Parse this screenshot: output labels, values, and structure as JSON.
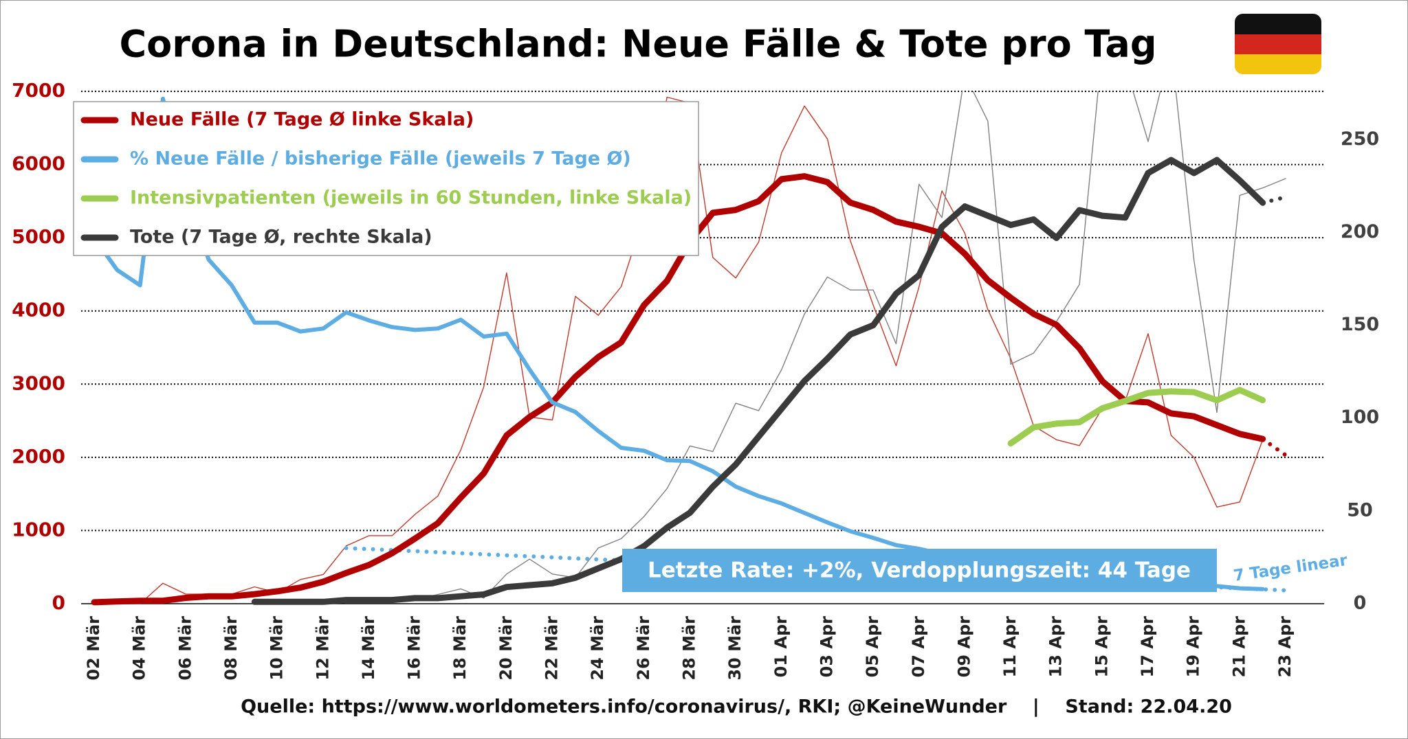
{
  "chart_data": {
    "type": "line",
    "title": "Corona in Deutschland: Neue Fälle & Tote pro Tag",
    "categories": [
      "02 Mär",
      null,
      "04 Mär",
      null,
      "06 Mär",
      null,
      "08 Mär",
      null,
      "10 Mär",
      null,
      "12 Mär",
      null,
      "14 Mär",
      null,
      "16 Mär",
      null,
      "18 Mär",
      null,
      "20 Mär",
      null,
      "22 Mär",
      null,
      "24 Mär",
      null,
      "26 Mär",
      null,
      "28 Mär",
      null,
      "30 Mär",
      null,
      "01 Apr",
      null,
      "03 Apr",
      null,
      "05 Apr",
      null,
      "07 Apr",
      null,
      "09 Apr",
      null,
      "11 Apr",
      null,
      "13 Apr",
      null,
      "15 Apr",
      null,
      "17 Apr",
      null,
      "19 Apr",
      null,
      "21 Apr",
      null,
      "23 Apr"
    ],
    "ylim": [
      0,
      7000
    ],
    "yticks": [
      0,
      1000,
      2000,
      3000,
      4000,
      5000,
      6000,
      7000
    ],
    "y2lim": [
      0,
      276
    ],
    "y2ticks": [
      0,
      50,
      100,
      150,
      200,
      250
    ],
    "grid": true,
    "series": [
      {
        "color": "#c0392b",
        "style": "thin",
        "axis": "y",
        "values": [
          0,
          0,
          0,
          280,
          130,
          130,
          130,
          230,
          150,
          330,
          400,
          790,
          930,
          930,
          1220,
          1470,
          2100,
          2960,
          4520,
          2550,
          2510,
          4200,
          3940,
          4330,
          5300,
          6920,
          6840,
          4730,
          4450,
          4940,
          6160,
          6800,
          6350,
          4960,
          4080,
          3250,
          4330,
          5640,
          5060,
          4020,
          3350,
          2430,
          2240,
          2160,
          2670,
          2770,
          3690,
          2300,
          2000,
          1320,
          1390,
          2240,
          null
        ]
      },
      {
        "color": "#808080",
        "style": "thin",
        "axis": "y2",
        "values": [
          null,
          null,
          null,
          null,
          null,
          null,
          null,
          0,
          0,
          1,
          1,
          2,
          2,
          2,
          2,
          5,
          8,
          3,
          16,
          24,
          16,
          14,
          30,
          35,
          47,
          62,
          85,
          82,
          108,
          104,
          126,
          156,
          176,
          169,
          169,
          140,
          226,
          208,
          285,
          260,
          129,
          135,
          152,
          172,
          300,
          290,
          249,
          300,
          185,
          103,
          220,
          224,
          229
        ]
      },
      {
        "color": "#5dade2",
        "style": "dotted",
        "axis": "y",
        "values": [
          null,
          null,
          null,
          null,
          null,
          null,
          null,
          null,
          null,
          null,
          null,
          760,
          746,
          732,
          718,
          704,
          690,
          675,
          661,
          647,
          633,
          619,
          605,
          591,
          577,
          563,
          549,
          534,
          520,
          506,
          492,
          478,
          464,
          450,
          436,
          422,
          408,
          393,
          379,
          365,
          351,
          337,
          323,
          309,
          295,
          281,
          267,
          252,
          238,
          224,
          210,
          196,
          182
        ]
      },
      {
        "name": "Neue Fälle (7 Tage Ø linke Skala)",
        "color": "#b00000",
        "style": "thick",
        "axis": "y",
        "values": [
          20,
          30,
          40,
          40,
          80,
          100,
          100,
          130,
          170,
          220,
          300,
          420,
          530,
          690,
          890,
          1100,
          1450,
          1780,
          2300,
          2550,
          2750,
          3100,
          3370,
          3570,
          4080,
          4410,
          4950,
          5340,
          5380,
          5500,
          5800,
          5840,
          5760,
          5480,
          5380,
          5220,
          5150,
          5060,
          4780,
          4420,
          4180,
          3960,
          3810,
          3490,
          3040,
          2770,
          2750,
          2600,
          2560,
          2440,
          2320,
          2250,
          null
        ]
      },
      {
        "color": "#b00000",
        "style": "dotted",
        "axis": "y",
        "values": [
          null,
          null,
          null,
          null,
          null,
          null,
          null,
          null,
          null,
          null,
          null,
          null,
          null,
          null,
          null,
          null,
          null,
          null,
          null,
          null,
          null,
          null,
          null,
          null,
          null,
          null,
          null,
          null,
          null,
          null,
          null,
          null,
          null,
          null,
          null,
          null,
          null,
          null,
          null,
          null,
          null,
          null,
          null,
          null,
          null,
          null,
          null,
          null,
          null,
          null,
          null,
          2250,
          2030
        ]
      },
      {
        "name": "% Neue Fälle / bisherige Fälle (jeweils 7 Tage Ø)",
        "color": "#5dade2",
        "style": "thick-light",
        "axis": "y",
        "values": [
          5000,
          4560,
          4350,
          6900,
          5600,
          4700,
          4350,
          3840,
          3840,
          3720,
          3760,
          3980,
          3870,
          3780,
          3740,
          3760,
          3880,
          3650,
          3690,
          3200,
          2750,
          2620,
          2360,
          2130,
          2090,
          1960,
          1950,
          1810,
          1600,
          1470,
          1370,
          1240,
          1110,
          990,
          900,
          800,
          750,
          680,
          620,
          560,
          510,
          470,
          430,
          400,
          370,
          340,
          310,
          280,
          260,
          240,
          210,
          200,
          null
        ]
      },
      {
        "name": "Intensivpatienten (jeweils in 60 Stunden, linke Skala)",
        "color": "#9ccc50",
        "style": "thick",
        "axis": "y",
        "values": [
          null,
          null,
          null,
          null,
          null,
          null,
          null,
          null,
          null,
          null,
          null,
          null,
          null,
          null,
          null,
          null,
          null,
          null,
          null,
          null,
          null,
          null,
          null,
          null,
          null,
          null,
          null,
          null,
          null,
          null,
          null,
          null,
          null,
          null,
          null,
          null,
          null,
          null,
          null,
          null,
          2190,
          2410,
          2460,
          2480,
          2670,
          2770,
          2880,
          2900,
          2890,
          2780,
          2920,
          2780,
          null
        ]
      },
      {
        "name": "Tote (7 Tage Ø, rechte Skala)",
        "color": "#3a3a3a",
        "style": "thick",
        "axis": "y2",
        "values": [
          null,
          null,
          null,
          null,
          null,
          null,
          null,
          1,
          1,
          1,
          1,
          2,
          2,
          2,
          3,
          3,
          4,
          5,
          9,
          10,
          11,
          14,
          19,
          24,
          31,
          41,
          49,
          63,
          75,
          90,
          105,
          120,
          132,
          145,
          150,
          167,
          177,
          203,
          214,
          209,
          204,
          207,
          197,
          212,
          209,
          208,
          232,
          239,
          232,
          239,
          228,
          216,
          null
        ]
      },
      {
        "color": "#3a3a3a",
        "style": "dotted",
        "axis": "y2",
        "values": [
          null,
          null,
          null,
          null,
          null,
          null,
          null,
          null,
          null,
          null,
          null,
          null,
          null,
          null,
          null,
          null,
          null,
          null,
          null,
          null,
          null,
          null,
          null,
          null,
          null,
          null,
          null,
          null,
          null,
          null,
          null,
          null,
          null,
          null,
          null,
          null,
          null,
          null,
          null,
          null,
          null,
          null,
          null,
          null,
          null,
          null,
          null,
          null,
          null,
          null,
          null,
          216,
          219
        ]
      }
    ],
    "annotation": "Letzte Rate: +2%, Verdopplungszeit: 44 Tage",
    "trend_label": "7 Tage linear",
    "source": "Quelle: https://www.worldometers.info/coronavirus/, RKI; @KeineWunder    |    Stand: 22.04.20"
  }
}
